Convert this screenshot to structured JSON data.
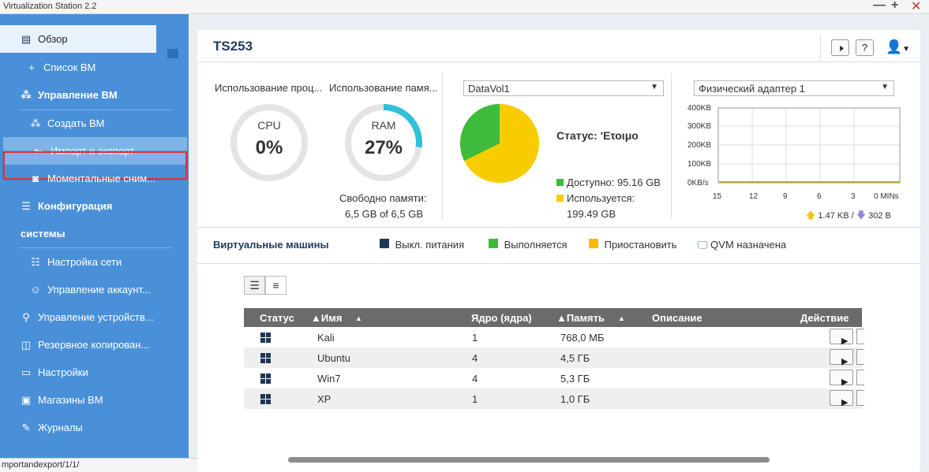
{
  "window": {
    "title": "Virtualization Station 2.2",
    "controls": [
      "—",
      "+",
      "✕"
    ]
  },
  "sidebar": {
    "overview": "Обзор",
    "vm_list": "Список ВМ",
    "vm_management": "Управление ВМ",
    "create_vm": "Создать ВМ",
    "import_export": "Импорт и экспорт",
    "snapshots": "Моментальные сним...",
    "config_line1": "Конфигурация",
    "config_line2": "системы",
    "network": "Настройка сети",
    "accounts": "Управление аккаунт...",
    "devices": "Управление устройств...",
    "backup": "Резервное копирован...",
    "settings": "Настройки",
    "stores": "Магазины ВМ",
    "logs": "Журналы"
  },
  "statusbar": {
    "url": "mportandexport/1/1/"
  },
  "header": {
    "hostname": "TS253",
    "speaker_icon": "speaker-icon",
    "help": "?",
    "user_icon": "user-icon"
  },
  "resources": {
    "cpu_label": "Использование проц...",
    "ram_label": "Использование памя...",
    "cpu_name": "CPU",
    "cpu_value": "0%",
    "ram_name": "RAM",
    "ram_value": "27%",
    "ram_percent": 27,
    "free_mem_label": "Свободно памяти:",
    "free_mem_value": "6,5 GB of 6,5 GB"
  },
  "storage": {
    "volume": "DataVol1",
    "status": "Статус: 'Ετοιμο",
    "available": "Доступно: 95.16 GB",
    "used_label": "Используется:",
    "used_value": "199.49 GB",
    "available_gb": 95.16,
    "used_gb": 199.49,
    "available_color": "#3dbb3d",
    "used_color": "#f9cc00"
  },
  "network": {
    "adapter": "Физический адаптер 1",
    "y_ticks": [
      "400KB",
      "300KB",
      "200KB",
      "100KB",
      "0KB/s"
    ],
    "x_ticks": [
      "15",
      "12",
      "9",
      "6",
      "3",
      "0 MINs"
    ],
    "upload": "1.47 KB /",
    "download": "302 B"
  },
  "vm_section": {
    "title": "Виртуальные машины",
    "legend": [
      {
        "label": "Выкл. питания",
        "color": "#1e3656"
      },
      {
        "label": "Выполняется",
        "color": "#3dbb3d"
      },
      {
        "label": "Приостановить",
        "color": "#f9b800"
      },
      {
        "label": "QVM назначена",
        "color": "#4a7fc0"
      }
    ]
  },
  "table": {
    "headers": {
      "status": "Статус",
      "name": "▲Имя",
      "name_sort": "▲",
      "cores": "Ядро (ядра)",
      "memory": "▲Память",
      "memory_sort": "▲",
      "description": "Описание",
      "action": "Действие"
    },
    "rows": [
      {
        "name": "Kali",
        "cores": "1",
        "memory": "768,0 МБ"
      },
      {
        "name": "Ubuntu",
        "cores": "4",
        "memory": "4,5 ГБ"
      },
      {
        "name": "Win7",
        "cores": "4",
        "memory": "5,3 ГБ"
      },
      {
        "name": "XP",
        "cores": "1",
        "memory": "1,0 ГБ"
      }
    ]
  }
}
